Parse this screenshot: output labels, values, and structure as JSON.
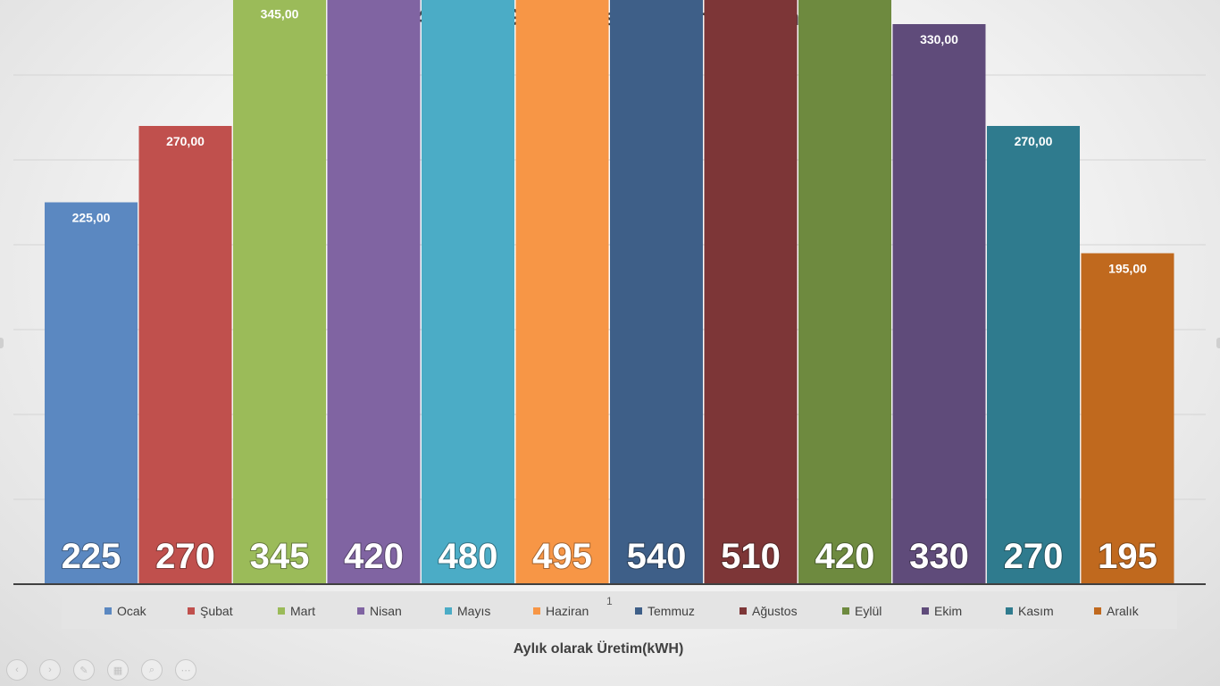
{
  "page": {
    "number": "1"
  },
  "nav": {
    "prev_icon": "‹",
    "next_icon": "›",
    "pen_icon": "✎",
    "slides_icon": "▦",
    "zoom_icon": "⌕",
    "more_icon": "⋯"
  },
  "chart_data": {
    "type": "bar",
    "title": "3,41 kWp GES Tesisi - Üretim Beklentisi",
    "xlabel": "Aylık olarak Üretim(kWH)",
    "ylabel": "",
    "ylim": [
      0,
      600
    ],
    "grid": true,
    "legend_position": "bottom",
    "categories": [
      "Ocak",
      "Şubat",
      "Mart",
      "Nisan",
      "Mayıs",
      "Haziran",
      "Temmuz",
      "Ağustos",
      "Eylül",
      "Ekim",
      "Kasım",
      "Aralık"
    ],
    "values": [
      225,
      270,
      345,
      420,
      480,
      495,
      540,
      510,
      420,
      330,
      270,
      195
    ],
    "value_labels": [
      "225,00",
      "270,00",
      "345,00",
      "420,00",
      "480,00",
      "495,00",
      "540,00",
      "510,00",
      "420,00",
      "330,00",
      "270,00",
      "195,00"
    ],
    "big_labels": [
      "225",
      "270",
      "345",
      "420",
      "480",
      "495",
      "540",
      "510",
      "420",
      "330",
      "270",
      "195"
    ],
    "colors": [
      "#5b88c1",
      "#c0504d",
      "#9bbb59",
      "#8064a2",
      "#4bacc6",
      "#f79646",
      "#3e5f88",
      "#7d3637",
      "#6e8a3f",
      "#5f4b7a",
      "#2f7b8e",
      "#c0691e"
    ]
  }
}
